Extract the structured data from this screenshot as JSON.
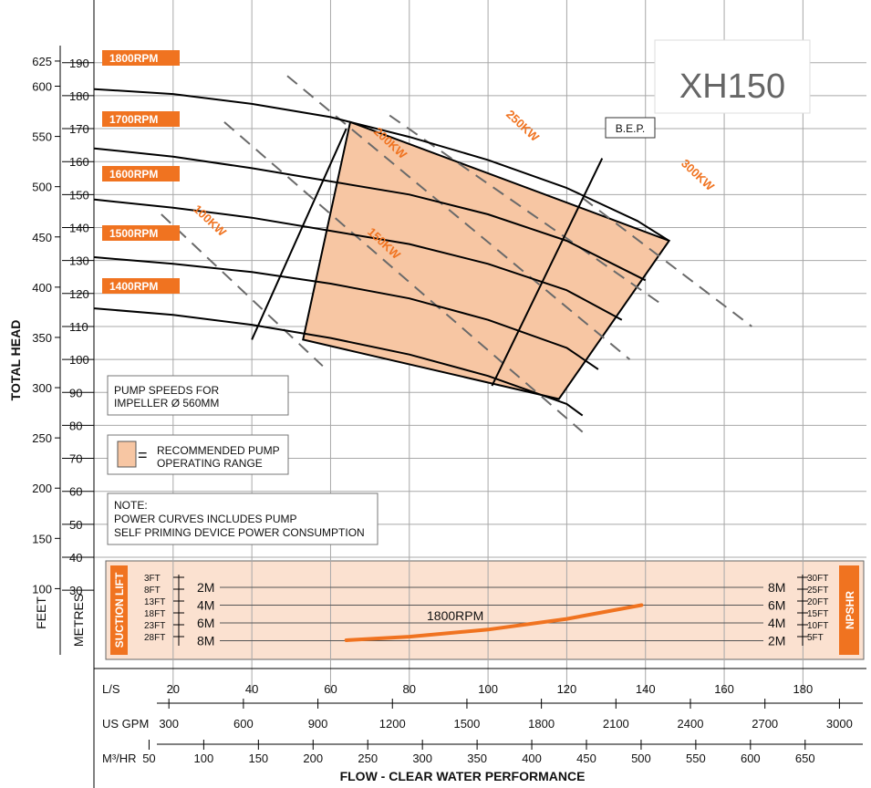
{
  "chart_data": {
    "type": "line",
    "title": "XH150",
    "ylabel": "TOTAL HEAD",
    "xlabel": "FLOW - CLEAR WATER PERFORMANCE",
    "grid": true,
    "axes": {
      "metres": {
        "label": "METRES",
        "ticks": [
          190,
          180,
          170,
          160,
          150,
          140,
          130,
          120,
          110,
          100,
          90,
          80,
          70,
          60,
          50,
          40,
          30
        ]
      },
      "feet": {
        "label": "FEET",
        "ticks": [
          625,
          600,
          550,
          500,
          450,
          400,
          350,
          300,
          250,
          200,
          150,
          100
        ]
      },
      "ls": {
        "label": "L/S",
        "ticks": [
          20,
          40,
          60,
          80,
          100,
          120,
          140,
          160,
          180
        ]
      },
      "usgpm": {
        "label": "US GPM",
        "ticks": [
          300,
          600,
          900,
          1200,
          1500,
          1800,
          2100,
          2400,
          2700,
          3000
        ]
      },
      "m3hr": {
        "label": "M³/HR",
        "ticks": [
          50,
          100,
          150,
          200,
          250,
          300,
          350,
          400,
          450,
          500,
          550,
          600,
          650
        ]
      }
    },
    "xlim_ls": [
      0,
      194
    ],
    "ylim_metres": [
      30,
      200
    ],
    "speed_curves": [
      {
        "name": "1800RPM",
        "x": [
          0,
          20,
          40,
          60,
          65,
          80,
          100,
          120,
          138,
          146
        ],
        "y": [
          182,
          180.5,
          177.5,
          173.5,
          172,
          167.5,
          160.5,
          152,
          142,
          136
        ]
      },
      {
        "name": "1700RPM",
        "x": [
          0,
          20,
          40,
          60,
          80,
          100,
          120,
          140
        ],
        "y": [
          164,
          161.5,
          158,
          154,
          150,
          144,
          136,
          124
        ]
      },
      {
        "name": "1600RPM",
        "x": [
          0,
          20,
          40,
          60,
          80,
          100,
          120,
          134
        ],
        "y": [
          148.5,
          146,
          143,
          139,
          135,
          129,
          121,
          112
        ]
      },
      {
        "name": "1500RPM",
        "x": [
          0,
          20,
          40,
          60,
          80,
          100,
          120,
          128
        ],
        "y": [
          131,
          129,
          126.5,
          123,
          118.5,
          112,
          103.5,
          97
        ]
      },
      {
        "name": "1400RPM",
        "x": [
          0,
          20,
          40,
          60,
          80,
          100,
          120,
          124
        ],
        "y": [
          115.5,
          113.5,
          110.5,
          106.5,
          101.5,
          95,
          86.5,
          83
        ]
      }
    ],
    "power_lines": [
      {
        "name": "100KW",
        "x": [
          17,
          58
        ],
        "y": [
          144,
          98
        ]
      },
      {
        "name": "150KW",
        "x": [
          33,
          124
        ],
        "y": [
          172,
          78
        ]
      },
      {
        "name": "200KW",
        "x": [
          49,
          136
        ],
        "y": [
          186,
          100
        ]
      },
      {
        "name": "250KW",
        "x": [
          75,
          145
        ],
        "y": [
          174,
          116
        ]
      },
      {
        "name": "300KW",
        "x": [
          124,
          167
        ],
        "y": [
          149,
          110
        ]
      }
    ],
    "bep_lines": [
      {
        "x": [
          64,
          40
        ],
        "y": [
          170,
          106
        ]
      },
      {
        "x": [
          129,
          101
        ],
        "y": [
          161,
          92
        ]
      }
    ],
    "recommended_range": {
      "x": [
        65,
        146,
        118,
        53
      ],
      "y": [
        172,
        136,
        88,
        106
      ]
    },
    "bep_label": "B.E.P.",
    "rpm_labels": [
      "1800RPM",
      "1700RPM",
      "1600RPM",
      "1500RPM",
      "1400RPM"
    ],
    "kw_labels": [
      "100KW",
      "150KW",
      "200KW",
      "250KW",
      "300KW"
    ],
    "notes": {
      "speeds_1": "PUMP SPEEDS FOR",
      "speeds_2": "IMPELLER  Ø 560MM",
      "range_1": "RECOMMENDED PUMP",
      "range_2": "OPERATING RANGE",
      "note_1": "NOTE:",
      "note_2": "POWER CURVES INCLUDES PUMP",
      "note_3": "SELF PRIMING DEVICE POWER CONSUMPTION",
      "equals": "="
    },
    "npshr": {
      "suction_label": "SUCTION LIFT",
      "npshr_label": "NPSHR",
      "left_ft": [
        "3FT",
        "8FT",
        "13FT",
        "18FT",
        "23FT",
        "28FT"
      ],
      "left_m": [
        "2M",
        "4M",
        "6M",
        "8M"
      ],
      "right_m": [
        "8M",
        "6M",
        "4M",
        "2M"
      ],
      "right_ft": [
        "30FT",
        "25FT",
        "20FT",
        "15FT",
        "10FT",
        "5FT"
      ],
      "curve_label": "1800RPM",
      "curve": {
        "x": [
          64,
          80,
          100,
          120,
          139
        ],
        "y_m": [
          7.95,
          7.55,
          6.75,
          5.55,
          4.0
        ]
      }
    },
    "colors": {
      "range_fill": "#f7c6a3",
      "npsh_band": "#fbe1d0",
      "accent": "#f07320",
      "curve": "#000000",
      "power_line": "#6a6a6a",
      "grid": "#a8a8a8",
      "title": "#666666"
    }
  }
}
